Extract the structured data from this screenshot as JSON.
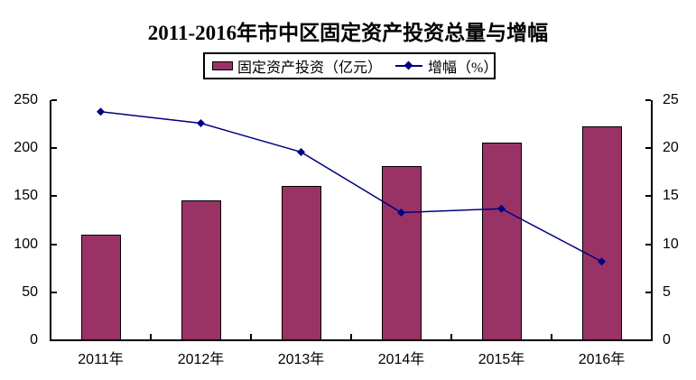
{
  "title": "2011-2016年市中区固定资产投资总量与增幅",
  "legend": {
    "bar_label": "固定资产投资（亿元）",
    "line_label": "增幅（%）"
  },
  "colors": {
    "bar_fill": "#993366",
    "bar_border": "#000000",
    "line": "#000080",
    "axis": "#000000",
    "text": "#000000",
    "background": "#ffffff"
  },
  "chart_data": {
    "type": "bar",
    "combo": "bar+line",
    "title": "2011-2016年市中区固定资产投资总量与增幅",
    "categories": [
      "2011年",
      "2012年",
      "2013年",
      "2014年",
      "2015年",
      "2016年"
    ],
    "series": [
      {
        "name": "固定资产投资（亿元）",
        "type": "bar",
        "axis": "left",
        "values": [
          110,
          146,
          161,
          181,
          206,
          223
        ]
      },
      {
        "name": "增幅（%）",
        "type": "line",
        "axis": "right",
        "values": [
          23.8,
          22.6,
          19.6,
          13.3,
          13.7,
          8.2
        ]
      }
    ],
    "left_axis": {
      "min": 0,
      "max": 250,
      "step": 50,
      "ticks": [
        "0",
        "50",
        "100",
        "150",
        "200",
        "250"
      ]
    },
    "right_axis": {
      "min": 0,
      "max": 25,
      "step": 5,
      "ticks": [
        "0",
        "5",
        "10",
        "15",
        "20",
        "25"
      ]
    },
    "grid": false,
    "legend_position": "top",
    "plot_background": "#ffffff"
  }
}
